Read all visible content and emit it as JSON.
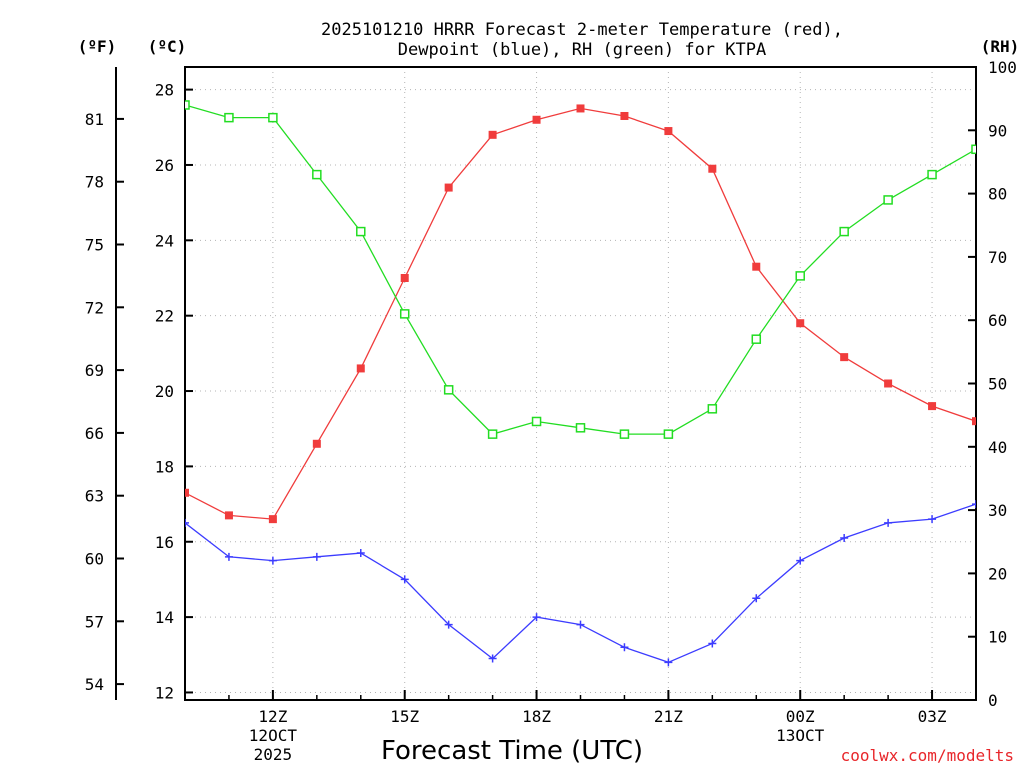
{
  "chart_data": {
    "type": "line",
    "title_line1": "2025101210 HRRR Forecast 2-meter Temperature (red),",
    "title_line2": "Dewpoint (blue), RH (green) for KTPA",
    "xlabel": "Forecast Time (UTC)",
    "credit": "coolwx.com/modelts",
    "units": {
      "fahrenheit": "(ºF)",
      "celsius": "(ºC)",
      "rh": "(RH)"
    },
    "x_hours": [
      10,
      11,
      12,
      13,
      14,
      15,
      16,
      17,
      18,
      19,
      20,
      21,
      22,
      23,
      24,
      25,
      26,
      27,
      28
    ],
    "xlim": [
      10,
      28
    ],
    "x_ticks": [
      {
        "hour": 12,
        "lines": [
          "12Z",
          "12OCT",
          "2025"
        ]
      },
      {
        "hour": 15,
        "lines": [
          "15Z"
        ]
      },
      {
        "hour": 18,
        "lines": [
          "18Z"
        ]
      },
      {
        "hour": 21,
        "lines": [
          "21Z"
        ]
      },
      {
        "hour": 24,
        "lines": [
          "00Z",
          "13OCT"
        ]
      },
      {
        "hour": 27,
        "lines": [
          "03Z"
        ]
      }
    ],
    "celsius_axis": {
      "ylim": [
        11.8,
        28.6
      ],
      "ticks": [
        12,
        14,
        16,
        18,
        20,
        22,
        24,
        26,
        28
      ]
    },
    "fahrenheit_ticks": [
      54,
      57,
      60,
      63,
      66,
      69,
      72,
      75,
      78,
      81
    ],
    "rh_axis": {
      "ylim": [
        0,
        100
      ],
      "ticks": [
        0,
        10,
        20,
        30,
        40,
        50,
        60,
        70,
        80,
        90,
        100
      ]
    },
    "series": [
      {
        "name": "Temperature",
        "color": "#f03c3c",
        "axis": "celsius",
        "marker": "filled-square",
        "values": [
          17.3,
          16.7,
          16.6,
          18.6,
          20.6,
          23.0,
          25.4,
          26.8,
          27.2,
          27.5,
          27.3,
          26.9,
          25.9,
          23.3,
          21.8,
          20.9,
          20.2,
          19.6,
          19.2
        ]
      },
      {
        "name": "Dewpoint",
        "color": "#3c3cff",
        "axis": "celsius",
        "marker": "plus",
        "values": [
          16.5,
          15.6,
          15.5,
          15.6,
          15.7,
          15.0,
          13.8,
          12.9,
          14.0,
          13.8,
          13.2,
          12.8,
          13.3,
          14.5,
          15.5,
          16.1,
          16.5,
          16.6,
          17.0
        ]
      },
      {
        "name": "RH",
        "color": "#22dd22",
        "axis": "rh",
        "marker": "open-square",
        "values": [
          94,
          92,
          92,
          83,
          74,
          61,
          49,
          42,
          44,
          43,
          42,
          42,
          46,
          57,
          67,
          74,
          79,
          83,
          87
        ]
      }
    ]
  }
}
